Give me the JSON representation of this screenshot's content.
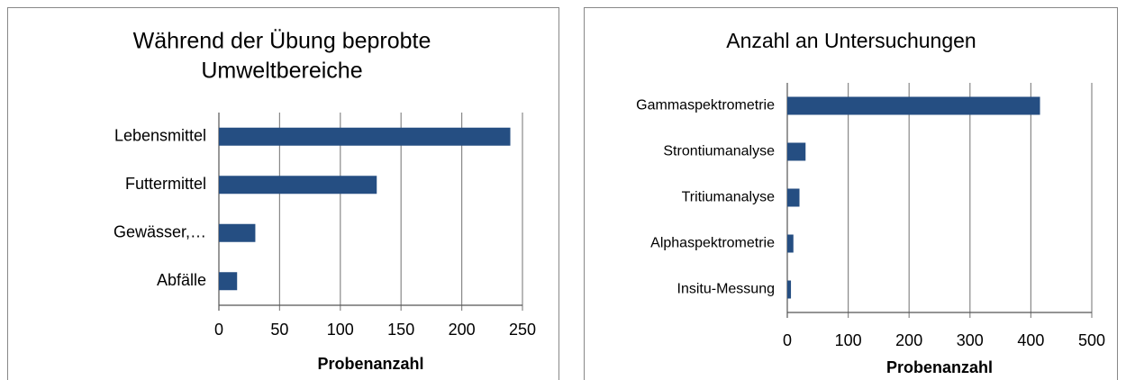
{
  "chart_data": [
    {
      "type": "bar",
      "orientation": "horizontal",
      "title": [
        "Während der Übung beprobte",
        "Umweltbereiche"
      ],
      "categories": [
        "Lebensmittel",
        "Futtermittel",
        "Gewässer,…",
        "Abfälle"
      ],
      "values": [
        240,
        130,
        30,
        15
      ],
      "color": "#254e82",
      "xlim": [
        0,
        250
      ],
      "xticks": [
        0,
        50,
        100,
        150,
        200,
        250
      ],
      "grid": true,
      "x_label": "Probenanzahl"
    },
    {
      "type": "bar",
      "orientation": "horizontal",
      "title": [
        "Anzahl an Untersuchungen"
      ],
      "categories": [
        "Gammaspektrometrie",
        "Strontiumanalyse",
        "Tritiumanalyse",
        "Alphaspektrometrie",
        "Insitu-Messung"
      ],
      "values": [
        415,
        30,
        20,
        10,
        6
      ],
      "color": "#254e82",
      "xlim": [
        0,
        500
      ],
      "xticks": [
        0,
        100,
        200,
        300,
        400,
        500
      ],
      "grid": true,
      "x_label": "Probenanzahl"
    }
  ]
}
